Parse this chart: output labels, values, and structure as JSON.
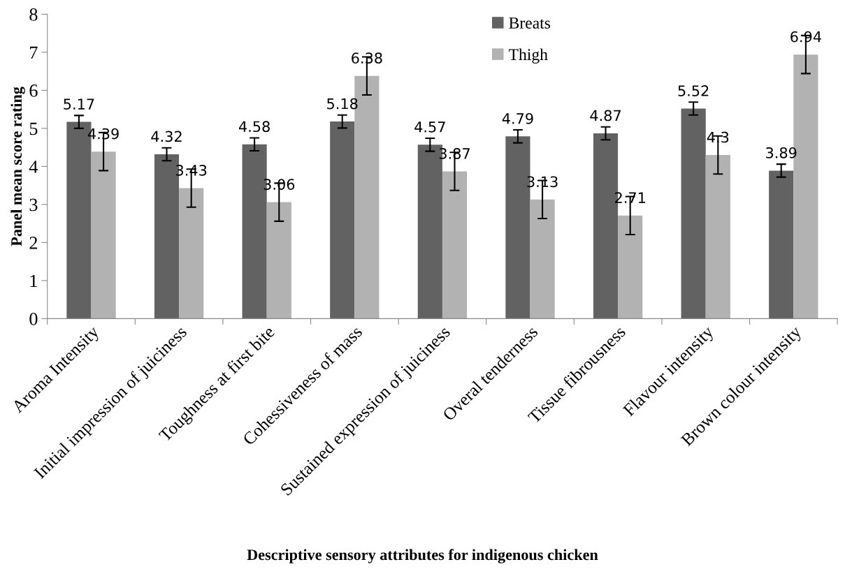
{
  "chart_data": {
    "type": "bar",
    "xlabel": "Descriptive sensory attributes for indigenous chicken",
    "ylabel": "Panel mean score rating",
    "categories": [
      "Aroma Intensity",
      "Initial impression of juiciness",
      "Toughness at first bite",
      "Cohessiveness of mass",
      "Sustained expression of juiciness",
      "Overal tenderness",
      "Tissue fibrousness",
      "Flavour intensity",
      "Brown colour intensity"
    ],
    "series": [
      {
        "name": "Breats",
        "color": "#626262",
        "values": [
          5.17,
          4.32,
          4.58,
          5.18,
          4.57,
          4.79,
          4.87,
          5.52,
          3.89
        ],
        "errors": [
          0.17,
          0.17,
          0.17,
          0.17,
          0.17,
          0.17,
          0.17,
          0.17,
          0.17
        ]
      },
      {
        "name": "Thigh",
        "color": "#b2b2b2",
        "values": [
          4.39,
          3.43,
          3.06,
          6.38,
          3.87,
          3.13,
          2.71,
          4.3,
          6.94
        ],
        "errors": [
          0.5,
          0.5,
          0.5,
          0.5,
          0.5,
          0.5,
          0.5,
          0.5,
          0.5
        ]
      }
    ],
    "ylim": [
      0,
      8
    ],
    "yticks": [
      0,
      1,
      2,
      3,
      4,
      5,
      6,
      7,
      8
    ],
    "data_labels": true,
    "grid": false,
    "legend": "top"
  }
}
